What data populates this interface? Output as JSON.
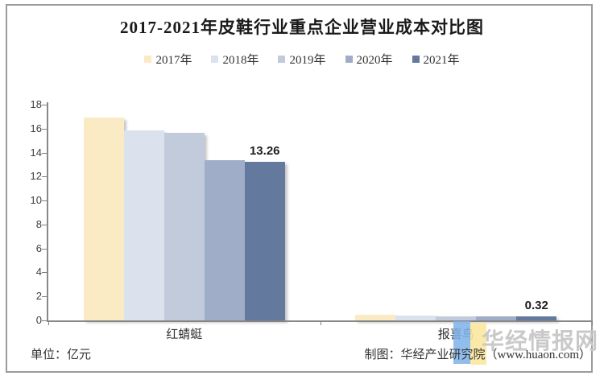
{
  "chart_data": {
    "type": "bar",
    "title": "2017-2021年皮鞋行业重点企业营业成本对比图",
    "categories": [
      "红蜻蜓",
      "报喜鸟"
    ],
    "series": [
      {
        "name": "2017年",
        "color": "#FBEBC4",
        "values": [
          16.9,
          0.44
        ]
      },
      {
        "name": "2018年",
        "color": "#DBE2EE",
        "values": [
          15.85,
          0.4
        ]
      },
      {
        "name": "2019年",
        "color": "#C1CBDB",
        "values": [
          15.65,
          0.36
        ]
      },
      {
        "name": "2020年",
        "color": "#9FADC8",
        "values": [
          13.35,
          0.34
        ]
      },
      {
        "name": "2021年",
        "color": "#64799E",
        "values": [
          13.26,
          0.32
        ],
        "data_labels": [
          "13.26",
          "0.32"
        ]
      }
    ],
    "xlabel": "",
    "ylabel": "",
    "ylim": [
      0,
      18
    ],
    "ytick_step": 2,
    "grid": false,
    "legend_position": "top",
    "unit_note": "单位：亿元",
    "source_note": "制图：华经产业研究院（www.huaon.com）",
    "watermark": "华经情报网"
  }
}
